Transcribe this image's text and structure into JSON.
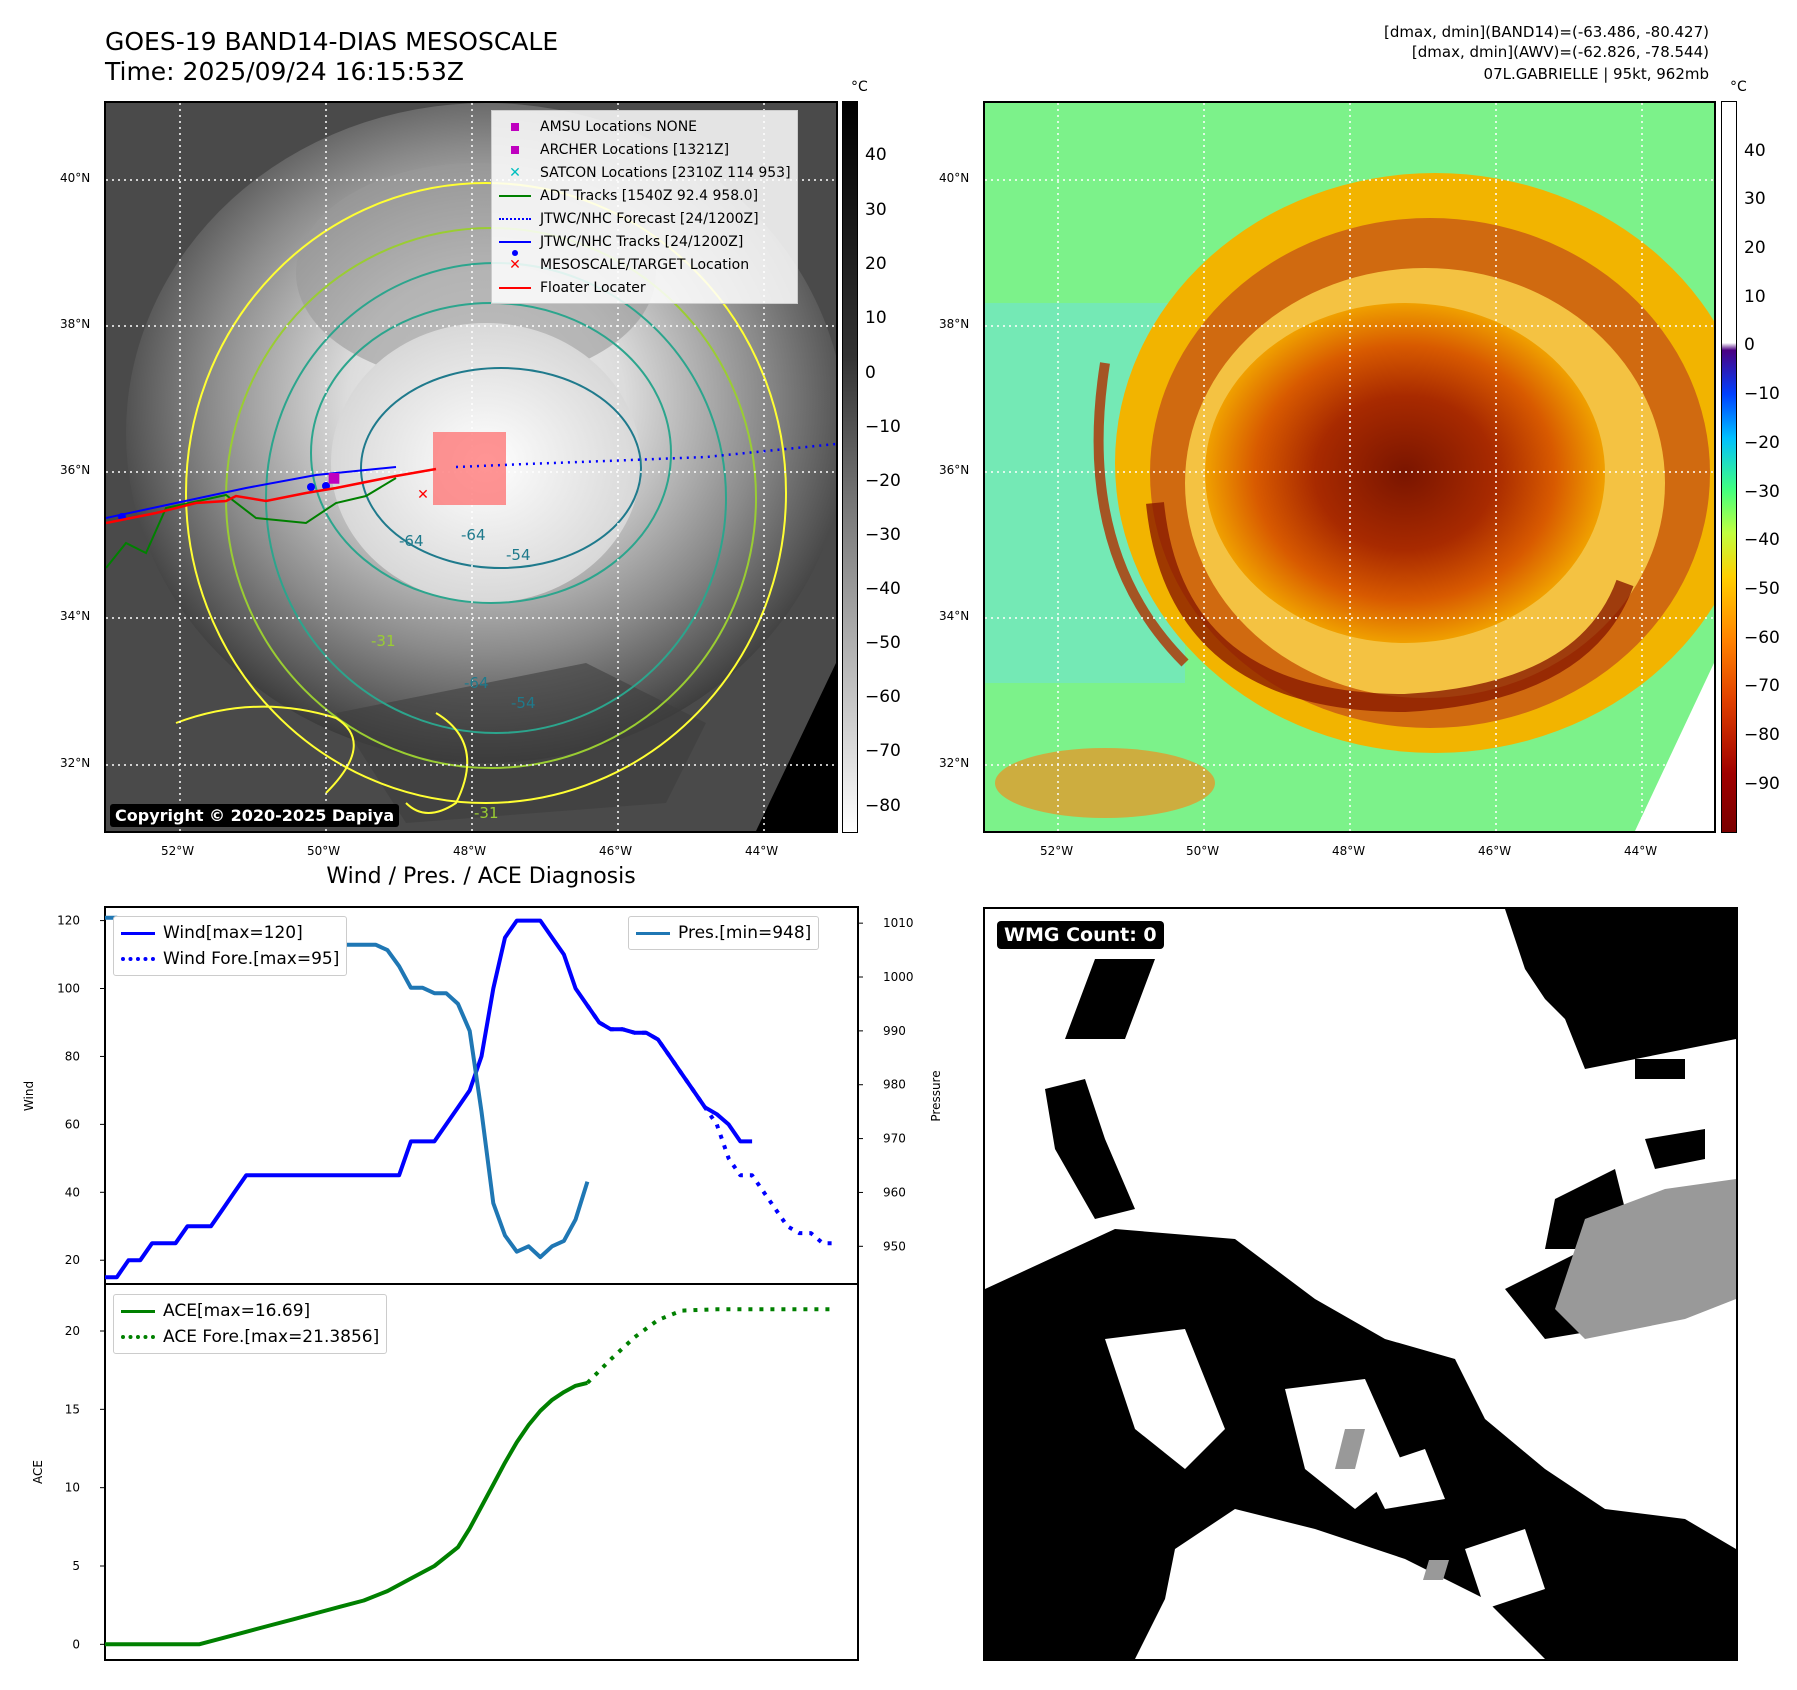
{
  "header": {
    "title_line1": "GOES-19 BAND14-DIAS MESOSCALE",
    "title_line2": "Time: 2025/09/24 16:15:53Z",
    "meta_line1": "[dmax, dmin](BAND14)=(-63.486, -80.427)",
    "meta_line2": "[dmax, dmin](AWV)=(-62.826, -78.544)",
    "meta_line3": "07L.GABRIELLE | 95kt, 962mb"
  },
  "map_axes": {
    "lat_labels": [
      "40°N",
      "38°N",
      "36°N",
      "34°N",
      "32°N"
    ],
    "lon_labels": [
      "52°W",
      "50°W",
      "48°W",
      "46°W",
      "44°W"
    ]
  },
  "ir_panel": {
    "colorbar_unit": "°C",
    "colorbar_ticks": [
      "40",
      "30",
      "20",
      "10",
      "0",
      "−10",
      "−20",
      "−30",
      "−40",
      "−50",
      "−60",
      "−70",
      "−80"
    ],
    "copyright": "Copyright © 2020-2025 Dapiya",
    "contour_labels": [
      "-64",
      "-64",
      "-54",
      "-31",
      "-64",
      "-54",
      "-31"
    ],
    "legend": [
      {
        "label": "AMSU Locations NONE",
        "symbol": "square",
        "color": "#bf00bf"
      },
      {
        "label": "ARCHER Locations [1321Z]",
        "symbol": "square",
        "color": "#bf00bf"
      },
      {
        "label": "SATCON Locations [2310Z 114 953]",
        "symbol": "x",
        "color": "#00bfbf"
      },
      {
        "label": "ADT Tracks [1540Z 92.4 958.0]",
        "symbol": "line",
        "color": "#008000"
      },
      {
        "label": "JTWC/NHC Forecast [24/1200Z]",
        "symbol": "dotted",
        "color": "#0000ff"
      },
      {
        "label": "JTWC/NHC Tracks [24/1200Z]",
        "symbol": "line-dot",
        "color": "#0000ff"
      },
      {
        "label": "MESOSCALE/TARGET Location",
        "symbol": "x",
        "color": "#ff0000"
      },
      {
        "label": "Floater Locater",
        "symbol": "line",
        "color": "#ff0000"
      }
    ]
  },
  "awv_panel": {
    "colorbar_unit": "°C",
    "colorbar_ticks": [
      "40",
      "30",
      "20",
      "10",
      "0",
      "−10",
      "−20",
      "−30",
      "−40",
      "−50",
      "−60",
      "−70",
      "−80",
      "−90"
    ]
  },
  "diagnosis": {
    "title": "Wind / Pres. / ACE Diagnosis",
    "wind_legend": "Wind[max=120]",
    "wind_fore_legend": "Wind Fore.[max=95]",
    "pres_legend": "Pres.[min=948]",
    "ace_legend": "ACE[max=16.69]",
    "ace_fore_legend": "ACE Fore.[max=21.3856]",
    "wind_ylabel": "Wind",
    "pres_ylabel": "Pressure",
    "ace_ylabel": "ACE"
  },
  "wmg": {
    "badge": "WMG Count: 0"
  },
  "colors": {
    "wind": "#0000ff",
    "pressure": "#1f77b4",
    "ace": "#008000",
    "wmg_gray": "#999999"
  },
  "chart_data": [
    {
      "type": "line",
      "xlim": [
        0,
        64
      ],
      "ylim": [
        13,
        124
      ],
      "y2lim": [
        943,
        1013
      ],
      "yticks": [
        20,
        40,
        60,
        80,
        100,
        120
      ],
      "y2ticks": [
        950,
        960,
        970,
        980,
        990,
        1000,
        1010
      ],
      "series": [
        {
          "name": "Wind[max=120]",
          "axis": "left",
          "style": "solid",
          "color": "#0000ff",
          "x": [
            0,
            1,
            2,
            3,
            4,
            5,
            6,
            7,
            8,
            9,
            10,
            11,
            12,
            13,
            14,
            15,
            16,
            17,
            18,
            19,
            20,
            21,
            22,
            23,
            24,
            25,
            26,
            27,
            28,
            29,
            30,
            31,
            32,
            33,
            34,
            35,
            36,
            37,
            38,
            39,
            40,
            41,
            42,
            43,
            44,
            45,
            46,
            47,
            48,
            49,
            50,
            51,
            52,
            53,
            54,
            55
          ],
          "values": [
            15,
            15,
            20,
            20,
            25,
            25,
            25,
            30,
            30,
            30,
            35,
            40,
            45,
            45,
            45,
            45,
            45,
            45,
            45,
            45,
            45,
            45,
            45,
            45,
            45,
            45,
            55,
            55,
            55,
            60,
            65,
            70,
            80,
            100,
            115,
            120,
            120,
            120,
            115,
            110,
            100,
            95,
            90,
            88,
            88,
            87,
            87,
            85,
            80,
            75,
            70,
            65,
            63,
            60,
            55,
            55
          ]
        },
        {
          "name": "Wind Fore.[max=95]",
          "axis": "left",
          "style": "dotted",
          "color": "#0000ff",
          "x": [
            41,
            42,
            43,
            44,
            45,
            46,
            47,
            48,
            49,
            50,
            51,
            52,
            53,
            54,
            55,
            56,
            57,
            58,
            59,
            60,
            61,
            62
          ],
          "values": [
            95,
            90,
            88,
            88,
            87,
            87,
            85,
            80,
            75,
            70,
            65,
            60,
            50,
            45,
            45,
            40,
            35,
            30,
            28,
            28,
            25,
            25
          ]
        },
        {
          "name": "Pres.[min=948]",
          "axis": "right",
          "style": "solid",
          "color": "#1f77b4",
          "x": [
            0,
            1,
            2,
            3,
            4,
            5,
            6,
            7,
            8,
            9,
            10,
            11,
            12,
            13,
            14,
            15,
            16,
            17,
            18,
            19,
            20,
            21,
            22,
            23,
            24,
            25,
            26,
            27,
            28,
            29,
            30,
            31,
            32,
            33,
            34,
            35,
            36,
            37,
            38,
            39,
            40,
            41
          ],
          "values": [
            1011,
            1011,
            1010,
            1010,
            1009,
            1009,
            1008,
            1008,
            1007,
            1007,
            1007,
            1006,
            1006,
            1006,
            1006,
            1006,
            1006,
            1006,
            1006,
            1006,
            1006,
            1006,
            1006,
            1006,
            1005,
            1002,
            998,
            998,
            997,
            997,
            995,
            990,
            975,
            958,
            952,
            949,
            950,
            948,
            950,
            951,
            955,
            962
          ]
        }
      ]
    },
    {
      "type": "line",
      "xlim": [
        0,
        64
      ],
      "ylim": [
        -1,
        23
      ],
      "yticks": [
        0,
        5,
        10,
        15,
        20
      ],
      "series": [
        {
          "name": "ACE[max=16.69]",
          "style": "solid",
          "color": "#008000",
          "x": [
            0,
            2,
            4,
            6,
            8,
            10,
            12,
            14,
            16,
            18,
            20,
            22,
            24,
            26,
            28,
            30,
            31,
            32,
            33,
            34,
            35,
            36,
            37,
            38,
            39,
            40,
            41
          ],
          "values": [
            0,
            0,
            0,
            0,
            0,
            0.4,
            0.8,
            1.2,
            1.6,
            2.0,
            2.4,
            2.8,
            3.4,
            4.2,
            5.0,
            6.2,
            7.4,
            8.8,
            10.2,
            11.6,
            12.9,
            14.0,
            14.9,
            15.6,
            16.1,
            16.5,
            16.69
          ]
        },
        {
          "name": "ACE Fore.[max=21.3856]",
          "style": "dotted",
          "color": "#008000",
          "x": [
            41,
            43,
            45,
            47,
            49,
            52,
            55,
            58,
            61,
            62
          ],
          "values": [
            16.69,
            18.2,
            19.6,
            20.7,
            21.3,
            21.3856,
            21.3856,
            21.3856,
            21.3856,
            21.3856
          ]
        }
      ]
    }
  ]
}
